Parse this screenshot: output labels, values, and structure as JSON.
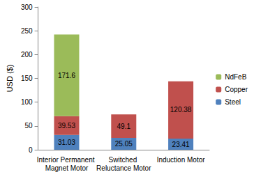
{
  "chart_data": {
    "type": "bar",
    "stacked": true,
    "y_label": "USD ($)",
    "categories": [
      "Interior Permanent Magnet Motor",
      "Switched Reluctance Motor",
      "Induction Motor"
    ],
    "series": [
      {
        "name": "Steel",
        "color": "#4f81bd",
        "values": [
          31.03,
          25.05,
          23.41
        ]
      },
      {
        "name": "Copper",
        "color": "#c0504d",
        "values": [
          39.53,
          49.1,
          120.38
        ]
      },
      {
        "name": "NdFeB",
        "color": "#9bbb59",
        "values": [
          171.6,
          null,
          null
        ]
      }
    ],
    "ylim": [
      0,
      300
    ],
    "yticks": [
      0,
      50,
      100,
      150,
      200,
      250,
      300
    ],
    "grid": false,
    "legend": "right",
    "data_labels": true
  }
}
